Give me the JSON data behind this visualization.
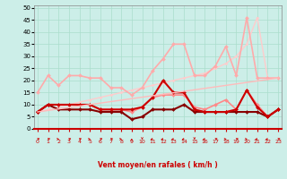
{
  "xlabel": "Vent moyen/en rafales ( km/h )",
  "bg_color": "#cceee8",
  "grid_color": "#aaddcc",
  "xlim": [
    -0.3,
    23.3
  ],
  "ylim": [
    0,
    51
  ],
  "yticks": [
    0,
    5,
    10,
    15,
    20,
    25,
    30,
    35,
    40,
    45,
    50
  ],
  "xticks": [
    0,
    1,
    2,
    3,
    4,
    5,
    6,
    7,
    8,
    9,
    10,
    11,
    12,
    13,
    14,
    15,
    16,
    17,
    18,
    19,
    20,
    21,
    22,
    23
  ],
  "series": [
    {
      "x": [
        0,
        1,
        2,
        3,
        4,
        5,
        6,
        7,
        8,
        9,
        10,
        11,
        12,
        13,
        14,
        15,
        16,
        17,
        18,
        19,
        20,
        21,
        22,
        23
      ],
      "y": [
        7,
        8,
        9,
        10,
        11,
        12,
        13,
        14,
        15,
        16,
        17,
        18,
        19,
        20,
        21,
        22,
        23,
        25,
        27,
        30,
        35,
        46,
        21,
        21
      ],
      "color": "#ffcccc",
      "lw": 1.0,
      "marker": "D",
      "ms": 1.5
    },
    {
      "x": [
        0,
        1,
        2,
        3,
        4,
        5,
        6,
        7,
        8,
        9,
        10,
        11,
        12,
        13,
        14,
        15,
        16,
        17,
        18,
        19,
        20,
        21,
        22,
        23
      ],
      "y": [
        15,
        22,
        18,
        22,
        22,
        21,
        21,
        17,
        17,
        14,
        17,
        24,
        29,
        35,
        35,
        22,
        22,
        26,
        34,
        22,
        46,
        21,
        21,
        21
      ],
      "color": "#ffaaaa",
      "lw": 1.2,
      "marker": "D",
      "ms": 2.0
    },
    {
      "x": [
        0,
        1,
        2,
        3,
        4,
        5,
        6,
        7,
        8,
        9,
        10,
        11,
        12,
        13,
        14,
        15,
        16,
        17,
        18,
        19,
        20,
        21,
        22,
        23
      ],
      "y": [
        7,
        10,
        10,
        10,
        10,
        10,
        8,
        8,
        8,
        7,
        9,
        13,
        14,
        14,
        14,
        9,
        8,
        10,
        12,
        8,
        16,
        10,
        5,
        8
      ],
      "color": "#ff8888",
      "lw": 1.2,
      "marker": "D",
      "ms": 2.0
    },
    {
      "x": [
        0,
        1,
        2,
        3,
        4,
        5,
        6,
        7,
        8,
        9,
        10,
        11,
        12,
        13,
        14,
        15,
        16,
        17,
        18,
        19,
        20,
        21,
        22,
        23
      ],
      "y": [
        7,
        10,
        8,
        8,
        8,
        8,
        7,
        7,
        7,
        4,
        5,
        8,
        8,
        8,
        10,
        7,
        7,
        7,
        7,
        7,
        7,
        7,
        5,
        8
      ],
      "color": "#880000",
      "lw": 1.5,
      "marker": "D",
      "ms": 2.0
    },
    {
      "x": [
        0,
        1,
        2,
        3,
        4,
        5,
        6,
        7,
        8,
        9,
        10,
        11,
        12,
        13,
        14,
        15,
        16,
        17,
        18,
        19,
        20,
        21,
        22,
        23
      ],
      "y": [
        7,
        10,
        10,
        10,
        10,
        10,
        8,
        8,
        8,
        8,
        9,
        13,
        20,
        15,
        15,
        8,
        7,
        7,
        7,
        8,
        16,
        9,
        5,
        8
      ],
      "color": "#cc0000",
      "lw": 1.5,
      "marker": "D",
      "ms": 2.0
    },
    {
      "x": [
        0,
        23
      ],
      "y": [
        7,
        21
      ],
      "color": "#ffbbbb",
      "lw": 1.0,
      "marker": null,
      "ms": 0
    }
  ],
  "wind_dirs": [
    45,
    45,
    90,
    45,
    45,
    90,
    45,
    45,
    90,
    0,
    180,
    225,
    225,
    225,
    225,
    180,
    225,
    45,
    90,
    45,
    90,
    225,
    225,
    45
  ],
  "wind_dir_color": "#cc0000",
  "xlabel_color": "#cc0000",
  "tick_color_x": "#cc0000",
  "tick_color_y": "#000000"
}
